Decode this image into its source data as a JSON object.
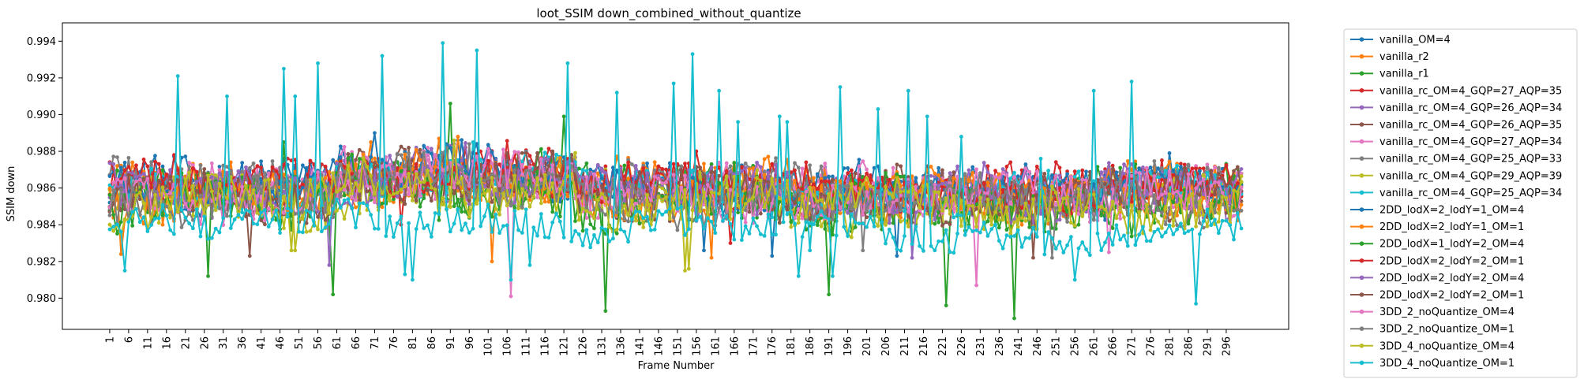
{
  "chart_data": {
    "type": "line",
    "title": "loot_SSIM down_combined_without_quantize",
    "xlabel": "Frame Number",
    "ylabel": "SSIM down",
    "x": {
      "start": 1,
      "end": 300
    },
    "xlim": [
      -11.5,
      312.5
    ],
    "xticks": [
      1,
      6,
      11,
      16,
      21,
      26,
      31,
      36,
      41,
      46,
      51,
      56,
      61,
      66,
      71,
      76,
      81,
      86,
      91,
      96,
      101,
      106,
      111,
      116,
      121,
      126,
      131,
      136,
      141,
      146,
      151,
      156,
      161,
      166,
      171,
      176,
      181,
      186,
      191,
      196,
      201,
      206,
      211,
      216,
      221,
      226,
      231,
      236,
      241,
      246,
      251,
      256,
      261,
      266,
      271,
      276,
      281,
      286,
      291,
      296
    ],
    "ylim": [
      0.9783,
      0.995
    ],
    "yticks": [
      "0.980",
      "0.982",
      "0.984",
      "0.986",
      "0.988",
      "0.990",
      "0.992",
      "0.994"
    ],
    "ytick_values": [
      0.98,
      0.982,
      0.984,
      0.986,
      0.988,
      0.99,
      0.992,
      0.994
    ],
    "grid": false,
    "legend_position": "outside-right",
    "series": [
      {
        "name": "vanilla_OM=4",
        "color": "#1f77b4",
        "base": 0.9862,
        "noise": 0.0011,
        "spikes": [
          [
            93,
            0.9886
          ],
          [
            281,
            0.9879
          ]
        ],
        "dips": [
          [
            176,
            0.9823
          ],
          [
            209,
            0.9823
          ]
        ]
      },
      {
        "name": "vanilla_r2",
        "color": "#ff7f0e",
        "base": 0.986,
        "noise": 0.0012,
        "spikes": [
          [
            70,
            0.9885
          ],
          [
            93,
            0.9888
          ]
        ],
        "dips": [
          [
            102,
            0.982
          ],
          [
            160,
            0.9822
          ]
        ]
      },
      {
        "name": "vanilla_r1",
        "color": "#2ca02c",
        "base": 0.9856,
        "noise": 0.0014,
        "spikes": [
          [
            91,
            0.9906
          ],
          [
            121,
            0.9899
          ]
        ],
        "dips": [
          [
            60,
            0.9802
          ],
          [
            132,
            0.9793
          ],
          [
            240,
            0.9789
          ],
          [
            222,
            0.9796
          ]
        ]
      },
      {
        "name": "vanilla_rc_OM=4_GQP=27_AQP=35",
        "color": "#d62728",
        "base": 0.9862,
        "noise": 0.001,
        "spikes": [
          [
            156,
            0.988
          ]
        ],
        "dips": [
          [
            165,
            0.983
          ]
        ]
      },
      {
        "name": "vanilla_rc_OM=4_GQP=26_AQP=34",
        "color": "#9467bd",
        "base": 0.986,
        "noise": 0.0011,
        "spikes": [
          [
            90,
            0.9884
          ]
        ],
        "dips": [
          [
            59,
            0.9818
          ]
        ]
      },
      {
        "name": "vanilla_rc_OM=4_GQP=26_AQP=35",
        "color": "#8c564b",
        "base": 0.9859,
        "noise": 0.0011,
        "spikes": [
          [
            88,
            0.9883
          ]
        ],
        "dips": [
          [
            38,
            0.9823
          ]
        ]
      },
      {
        "name": "vanilla_rc_OM=4_GQP=27_AQP=34",
        "color": "#e377c2",
        "base": 0.986,
        "noise": 0.0011,
        "spikes": [
          [
            85,
            0.9882
          ]
        ],
        "dips": [
          [
            107,
            0.9801
          ],
          [
            230,
            0.9807
          ]
        ]
      },
      {
        "name": "vanilla_rc_OM=4_GQP=25_AQP=33",
        "color": "#7f7f7f",
        "base": 0.9861,
        "noise": 0.001,
        "spikes": [
          [
            96,
            0.9884
          ]
        ],
        "dips": [
          [
            200,
            0.9826
          ]
        ]
      },
      {
        "name": "vanilla_rc_OM=4_GQP=29_AQP=39",
        "color": "#bcbd22",
        "base": 0.9854,
        "noise": 0.0012,
        "spikes": [
          [
            90,
            0.9884
          ]
        ],
        "dips": [
          [
            49,
            0.9826
          ],
          [
            153,
            0.9815
          ]
        ]
      },
      {
        "name": "vanilla_rc_OM=4_GQP=25_AQP=34",
        "color": "#17becf",
        "base": 0.9859,
        "noise": 0.001,
        "spikes": [
          [
            97,
            0.9885
          ]
        ],
        "dips": [
          [
            186,
            0.9826
          ]
        ]
      },
      {
        "name": "2DD_lodX=2_lodY=1_OM=4",
        "color": "#1f77b4",
        "base": 0.9862,
        "noise": 0.001,
        "spikes": [
          [
            71,
            0.989
          ]
        ],
        "dips": [
          [
            158,
            0.9826
          ]
        ]
      },
      {
        "name": "2DD_lodX=2_lodY=1_OM=1",
        "color": "#ff7f0e",
        "base": 0.9858,
        "noise": 0.0012,
        "spikes": [
          [
            88,
            0.9887
          ]
        ],
        "dips": [
          [
            4,
            0.9824
          ]
        ]
      },
      {
        "name": "2DD_lodX=1_lodY=2_OM=4",
        "color": "#2ca02c",
        "base": 0.9852,
        "noise": 0.0013,
        "spikes": [
          [
            47,
            0.9885
          ]
        ],
        "dips": [
          [
            27,
            0.9812
          ],
          [
            191,
            0.9802
          ]
        ]
      },
      {
        "name": "2DD_lodX=2_lodY=2_OM=1",
        "color": "#d62728",
        "base": 0.9862,
        "noise": 0.0009,
        "spikes": [
          [
            18,
            0.9878
          ]
        ],
        "dips": [
          [
            78,
            0.984
          ]
        ]
      },
      {
        "name": "2DD_lodX=2_lodY=2_OM=4",
        "color": "#9467bd",
        "base": 0.9858,
        "noise": 0.0011,
        "spikes": [
          [
            92,
            0.9884
          ]
        ],
        "dips": [
          [
            213,
            0.9822
          ]
        ]
      },
      {
        "name": "2DD_lodX=2_lodY=2_OM=1",
        "color": "#8c564b",
        "base": 0.9857,
        "noise": 0.0011,
        "spikes": [
          [
            80,
            0.9882
          ]
        ],
        "dips": [
          [
            245,
            0.9822
          ]
        ]
      },
      {
        "name": "3DD_2_noQuantize_OM=4",
        "color": "#e377c2",
        "base": 0.9857,
        "noise": 0.0011,
        "spikes": [
          [
            84,
            0.988
          ]
        ],
        "dips": [
          [
            265,
            0.9825
          ]
        ]
      },
      {
        "name": "3DD_2_noQuantize_OM=1",
        "color": "#7f7f7f",
        "base": 0.9855,
        "noise": 0.0011,
        "spikes": [
          [
            90,
            0.9882
          ]
        ],
        "dips": [
          [
            250,
            0.9822
          ]
        ]
      },
      {
        "name": "3DD_4_noQuantize_OM=4",
        "color": "#bcbd22",
        "base": 0.9852,
        "noise": 0.0012,
        "spikes": [
          [
            92,
            0.9886
          ]
        ],
        "dips": [
          [
            50,
            0.9826
          ],
          [
            154,
            0.9816
          ]
        ]
      },
      {
        "name": "3DD_4_noQuantize_OM=1",
        "color": "#17becf",
        "base": 0.9838,
        "noise": 0.0008,
        "spikes": [
          [
            19,
            0.9921
          ],
          [
            32,
            0.991
          ],
          [
            47,
            0.9925
          ],
          [
            50,
            0.991
          ],
          [
            56,
            0.9928
          ],
          [
            73,
            0.9932
          ],
          [
            81,
            0.9924
          ],
          [
            89,
            0.9939
          ],
          [
            98,
            0.9935
          ],
          [
            122,
            0.9928
          ],
          [
            135,
            0.9912
          ],
          [
            150,
            0.9917
          ],
          [
            155,
            0.9933
          ],
          [
            162,
            0.9913
          ],
          [
            167,
            0.9896
          ],
          [
            178,
            0.9899
          ],
          [
            180,
            0.9896
          ],
          [
            194,
            0.9915
          ],
          [
            204,
            0.9903
          ],
          [
            212,
            0.9913
          ],
          [
            217,
            0.9899
          ],
          [
            226,
            0.9888
          ],
          [
            247,
            0.9876
          ],
          [
            261,
            0.9913
          ],
          [
            271,
            0.9918
          ]
        ],
        "dips": [
          [
            5,
            0.9815
          ],
          [
            79,
            0.9813
          ],
          [
            81,
            0.981
          ],
          [
            107,
            0.981
          ],
          [
            112,
            0.9818
          ],
          [
            183,
            0.9812
          ],
          [
            192,
            0.9812
          ],
          [
            256,
            0.981
          ],
          [
            288,
            0.9797
          ]
        ]
      }
    ]
  }
}
